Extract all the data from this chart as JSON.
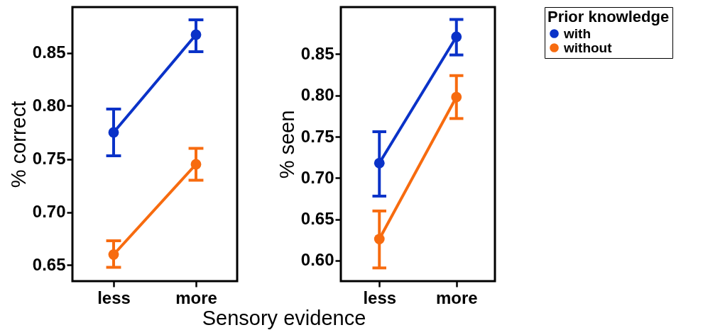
{
  "chart_data": [
    {
      "type": "line",
      "categories": [
        "less",
        "more"
      ],
      "xlabel": "Sensory evidence",
      "ylabel": "% correct",
      "ylim": [
        0.635,
        0.893
      ],
      "yticks": [
        0.65,
        {
          "value": 0.7,
          "label": "0.70"
        },
        0.75,
        {
          "value": 0.8,
          "label": "0.80"
        },
        0.85
      ],
      "marker": "circle",
      "grid": false,
      "legend": false,
      "series": [
        {
          "color": "#0a32c8",
          "values": [
            0.775,
            0.867
          ],
          "errors": [
            [
              0.753,
              0.797
            ],
            [
              0.851,
              0.881
            ]
          ]
        },
        {
          "color": "#f76b0f",
          "values": [
            0.66,
            0.745
          ],
          "errors": [
            [
              0.648,
              0.673
            ],
            [
              0.73,
              0.76
            ]
          ]
        }
      ]
    },
    {
      "type": "line",
      "categories": [
        "less",
        "more"
      ],
      "ylabel": "% seen",
      "ylim": [
        0.575,
        0.907
      ],
      "yticks": [
        {
          "value": 0.6,
          "label": "0.60"
        },
        0.65,
        {
          "value": 0.7,
          "label": "0.70"
        },
        0.75,
        {
          "value": 0.8,
          "label": "0.80"
        },
        0.85
      ],
      "marker": "circle",
      "grid": false,
      "legend": "top right",
      "legend_title": "Prior knowledge",
      "series": [
        {
          "name": "with",
          "color": "#0a32c8",
          "values": [
            0.718,
            0.871
          ],
          "errors": [
            [
              0.678,
              0.756
            ],
            [
              0.849,
              0.892
            ]
          ]
        },
        {
          "name": "without",
          "color": "#f76b0f",
          "values": [
            0.626,
            0.798
          ],
          "errors": [
            [
              0.591,
              0.66
            ],
            [
              0.772,
              0.824
            ]
          ]
        }
      ]
    }
  ]
}
